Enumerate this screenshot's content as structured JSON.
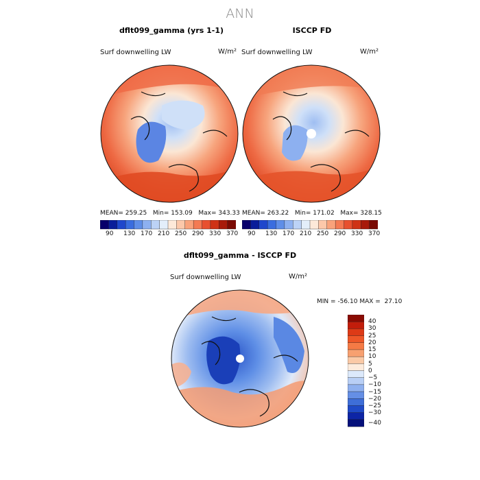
{
  "figure": {
    "season": "ANN",
    "units": "W/m²"
  },
  "panels": [
    {
      "title": "dflt099_gamma (yrs 1-1)",
      "variable": "Surf downwelling LW",
      "stats": {
        "mean": "259.25",
        "min": "153.09",
        "max": "343.33"
      }
    },
    {
      "title": "ISCCP FD",
      "variable": "Surf downwelling LW",
      "stats": {
        "mean": "263.22",
        "min": "171.02",
        "max": "328.15"
      }
    },
    {
      "title": "dflt099_gamma - ISCCP FD",
      "variable": "Surf downwelling LW",
      "stats": {
        "min": "-56.10",
        "max": "27.10"
      }
    }
  ],
  "stat_labels": {
    "mean": "MEAN=",
    "min": "Min=",
    "max": "Max=",
    "min_upper": "MIN =",
    "max_upper": "MAX ="
  },
  "colorbar_top": {
    "ticks": [
      "90",
      "130",
      "170",
      "210",
      "250",
      "290",
      "330",
      "370"
    ],
    "colors": [
      "#08006b",
      "#0a1d9a",
      "#1f47cc",
      "#3a6ddf",
      "#5f8ee8",
      "#8db0f0",
      "#bcd2f6",
      "#e3eefa",
      "#fde9d9",
      "#fcc8aa",
      "#f9a27b",
      "#f47a53",
      "#e8502f",
      "#cf3316",
      "#a81a0a",
      "#7a0a03"
    ]
  },
  "colorbar_diff": {
    "ticks": [
      "40",
      "30",
      "25",
      "20",
      "15",
      "10",
      "5",
      "0",
      "−5",
      "−10",
      "−15",
      "−20",
      "−25",
      "−30",
      "−40"
    ],
    "colors": [
      "#8a0b03",
      "#c21d0b",
      "#dd3a16",
      "#ee5728",
      "#f57a45",
      "#f7a070",
      "#fac9a6",
      "#fdebdc",
      "#dce9fb",
      "#b9cff5",
      "#8fb0ee",
      "#658fe5",
      "#3e6ed8",
      "#1f4ac7",
      "#0d25a6",
      "#05107a"
    ]
  },
  "chart_data": [
    {
      "type": "heatmap",
      "title": "dflt099_gamma (yrs 1-1)",
      "projection": "polar-stereographic (north)",
      "variable": "Surf downwelling LW",
      "units": "W/m2",
      "mean": 259.25,
      "min": 153.09,
      "max": 343.33,
      "colorbar_levels": [
        90,
        130,
        170,
        210,
        250,
        290,
        330,
        370
      ]
    },
    {
      "type": "heatmap",
      "title": "ISCCP FD",
      "projection": "polar-stereographic (north)",
      "variable": "Surf downwelling LW",
      "units": "W/m2",
      "mean": 263.22,
      "min": 171.02,
      "max": 328.15,
      "colorbar_levels": [
        90,
        130,
        170,
        210,
        250,
        290,
        330,
        370
      ]
    },
    {
      "type": "heatmap",
      "title": "dflt099_gamma - ISCCP FD",
      "projection": "polar-stereographic (north)",
      "variable": "Surf downwelling LW",
      "units": "W/m2",
      "min": -56.1,
      "max": 27.1,
      "colorbar_levels": [
        -40,
        -30,
        -25,
        -20,
        -15,
        -10,
        -5,
        0,
        5,
        10,
        15,
        20,
        25,
        30,
        40
      ]
    }
  ]
}
